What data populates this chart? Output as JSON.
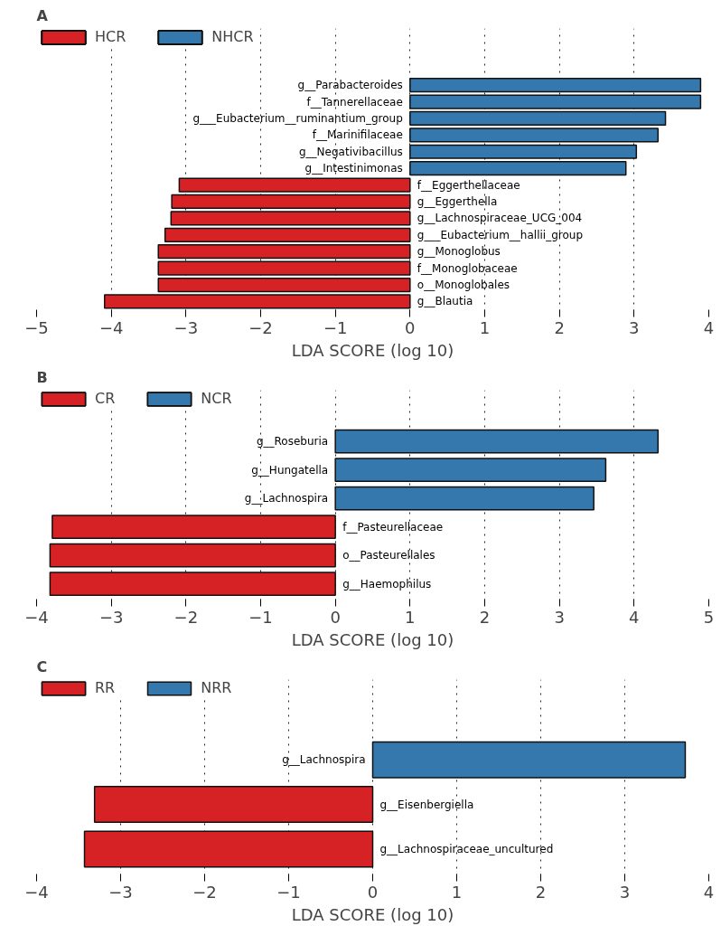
{
  "chart_data": [
    {
      "type": "bar",
      "orientation": "horizontal",
      "title": "A",
      "xlabel": "LDA SCORE (log 10)",
      "categories": [
        "g__Parabacteroides",
        "f__Tannerellaceae",
        "g___Eubacterium__ruminantium_group",
        "f__Marinifilaceae",
        "g__Negativibacillus",
        "g__Intestinimonas",
        "f__Eggerthellaceae",
        "g__Eggerthella",
        "g__Lachnospiraceae_UCG_004",
        "g___Eubacterium__hallii_group",
        "g__Monoglobus",
        "f__Monoglobaceae",
        "o__Monoglobales",
        "g__Blautia"
      ],
      "series": [
        {
          "name": "HCR",
          "color": "#d62224",
          "values": [
            null,
            null,
            null,
            null,
            null,
            null,
            -3.09,
            -3.19,
            -3.2,
            -3.28,
            -3.37,
            -3.37,
            -3.37,
            -4.09
          ]
        },
        {
          "name": "NHCR",
          "color": "#3478ad",
          "values": [
            3.89,
            3.89,
            3.42,
            3.32,
            3.03,
            2.89,
            null,
            null,
            null,
            null,
            null,
            null,
            null,
            null
          ]
        }
      ],
      "xlim": [
        -5,
        4
      ],
      "xticks": [
        {
          "value": -5,
          "label": "−5"
        },
        {
          "value": -4,
          "label": "−4"
        },
        {
          "value": -3,
          "label": "−3"
        },
        {
          "value": -2,
          "label": "−2"
        },
        {
          "value": -1,
          "label": "−1"
        },
        0,
        1,
        2,
        3,
        4
      ],
      "grid": "x",
      "legend": "top left",
      "tick_labels": "x"
    },
    {
      "type": "bar",
      "orientation": "horizontal",
      "title": "B",
      "xlabel": "LDA SCORE (log 10)",
      "categories": [
        "g__Roseburia",
        "g__Hungatella",
        "g__Lachnospira",
        "f__Pasteurellaceae",
        "o__Pasteurellales",
        "g__Haemophilus"
      ],
      "series": [
        {
          "name": "CR",
          "color": "#d62224",
          "values": [
            null,
            null,
            null,
            -3.79,
            -3.82,
            -3.82
          ]
        },
        {
          "name": "NCR",
          "color": "#3478ad",
          "values": [
            4.32,
            3.62,
            3.46,
            null,
            null,
            null
          ]
        }
      ],
      "xlim": [
        -4,
        5
      ],
      "xticks": [
        {
          "value": -4,
          "label": "−4"
        },
        {
          "value": -3,
          "label": "−3"
        },
        {
          "value": -2,
          "label": "−2"
        },
        {
          "value": -1,
          "label": "−1"
        },
        0,
        1,
        2,
        3,
        4,
        5
      ],
      "grid": "x",
      "legend": "top left",
      "tick_labels": "x"
    },
    {
      "type": "bar",
      "orientation": "horizontal",
      "title": "C",
      "xlabel": "LDA SCORE (log 10)",
      "categories": [
        "g__Lachnospira",
        "g__Eisenbergiella",
        "g__Lachnospiraceae_uncultured"
      ],
      "series": [
        {
          "name": "RR",
          "color": "#d62224",
          "values": [
            null,
            -3.31,
            -3.43
          ]
        },
        {
          "name": "NRR",
          "color": "#3478ad",
          "values": [
            3.72,
            null,
            null
          ]
        }
      ],
      "xlim": [
        -4,
        4
      ],
      "xticks": [
        {
          "value": -4,
          "label": "−4"
        },
        {
          "value": -3,
          "label": "−3"
        },
        {
          "value": -2,
          "label": "−2"
        },
        {
          "value": -1,
          "label": "−1"
        },
        0,
        1,
        2,
        3,
        4
      ],
      "grid": "x",
      "legend": "top left",
      "tick_labels": "x"
    }
  ]
}
